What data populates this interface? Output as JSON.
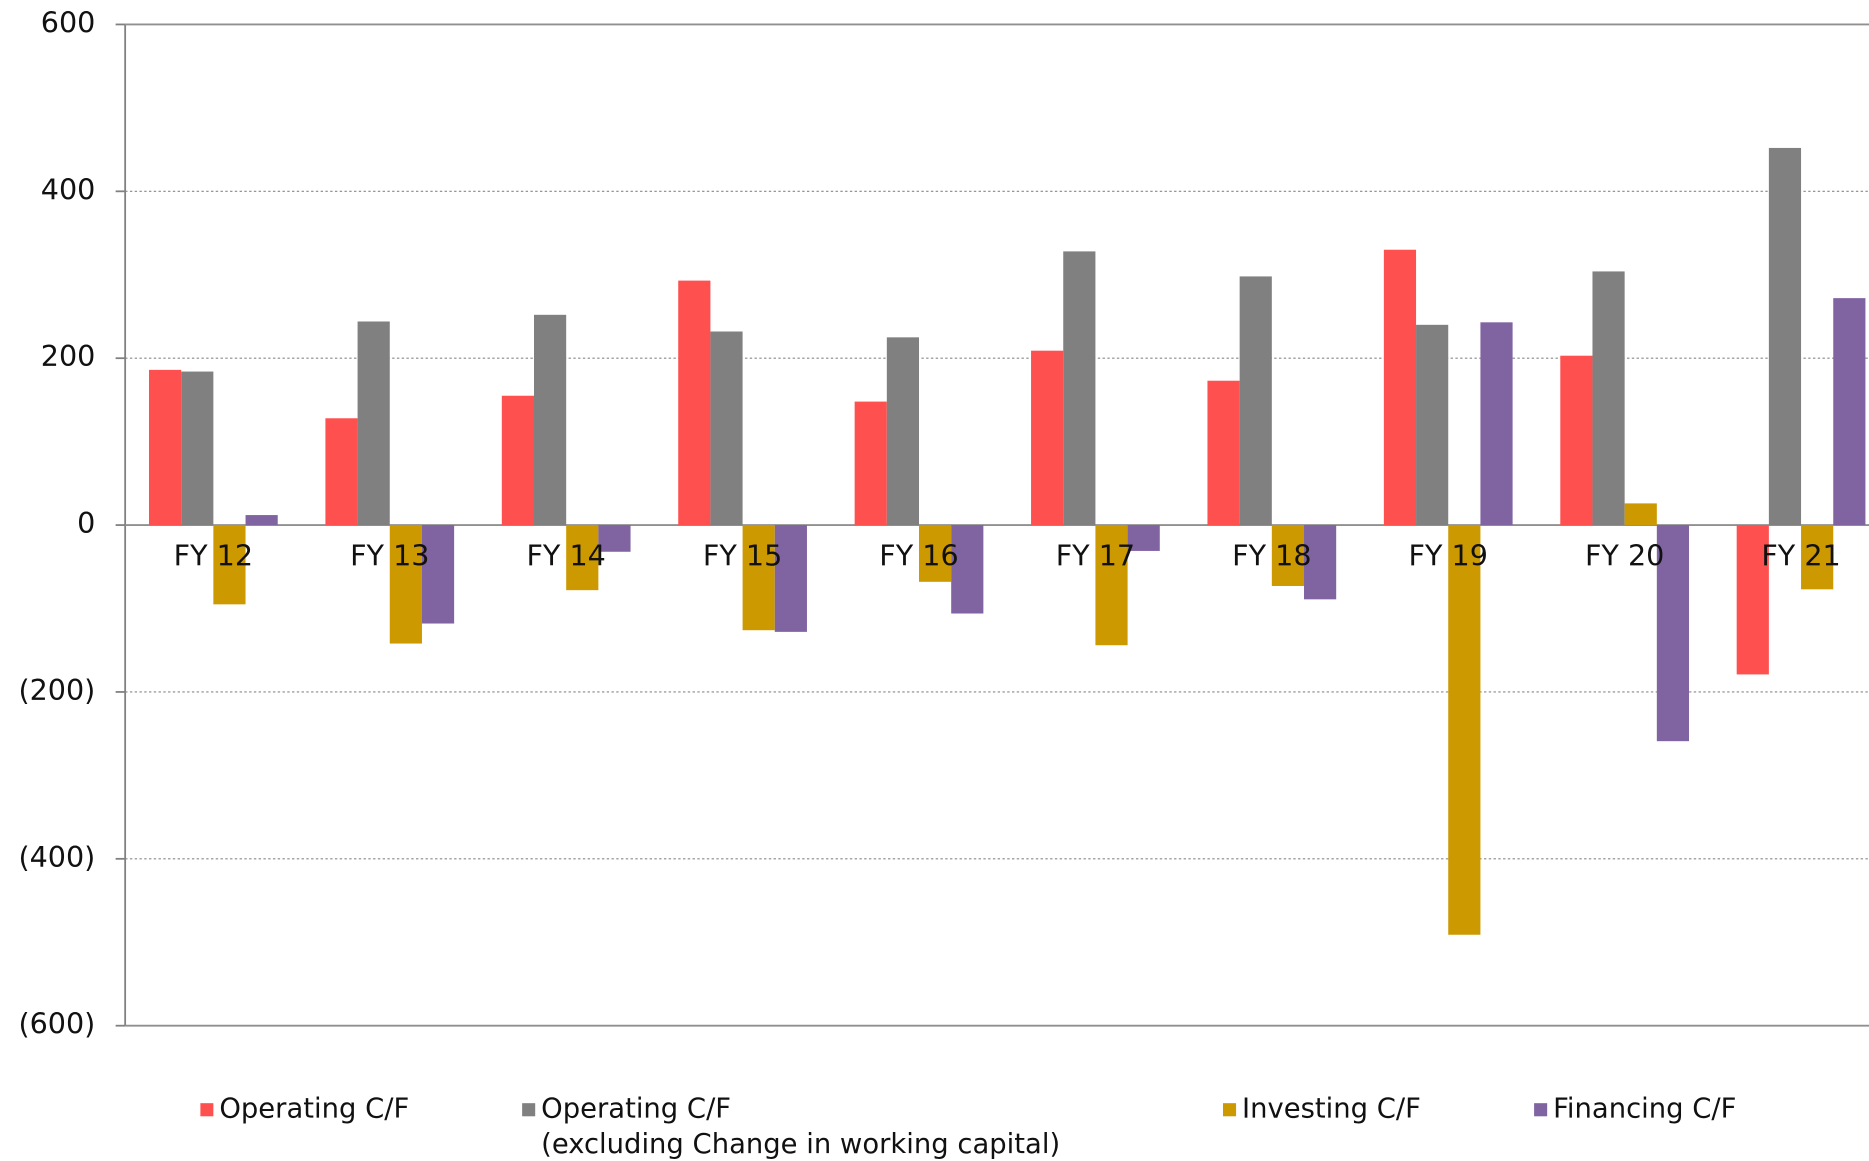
{
  "chart_data": {
    "type": "bar",
    "categories": [
      "FY 12",
      "FY 13",
      "FY 14",
      "FY 15",
      "FY 16",
      "FY 17",
      "FY 18",
      "FY 19",
      "FY 20",
      "FY 21"
    ],
    "series": [
      {
        "name": "Operating C/F",
        "color": "#ff5050",
        "values": [
          186,
          128,
          155,
          293,
          148,
          209,
          173,
          330,
          203,
          -179
        ]
      },
      {
        "name": "Operating C/F\n(excluding Change in working capital)",
        "color": "#808080",
        "values": [
          184,
          244,
          252,
          232,
          225,
          328,
          298,
          240,
          304,
          452
        ]
      },
      {
        "name": "Investing C/F",
        "color": "#cc9900",
        "values": [
          -95,
          -142,
          -78,
          -126,
          -68,
          -144,
          -73,
          -491,
          26,
          -77
        ]
      },
      {
        "name": "Financing C/F",
        "color": "#8064a2",
        "values": [
          12,
          -118,
          -32,
          -128,
          -106,
          -31,
          -89,
          243,
          -259,
          272
        ]
      }
    ],
    "ylim": [
      -600,
      600
    ],
    "yticks": [
      {
        "value": -600,
        "label": "(600)"
      },
      {
        "value": -400,
        "label": "(400)"
      },
      {
        "value": -200,
        "label": "(200)"
      },
      0,
      200,
      400,
      600
    ],
    "grid": true
  }
}
